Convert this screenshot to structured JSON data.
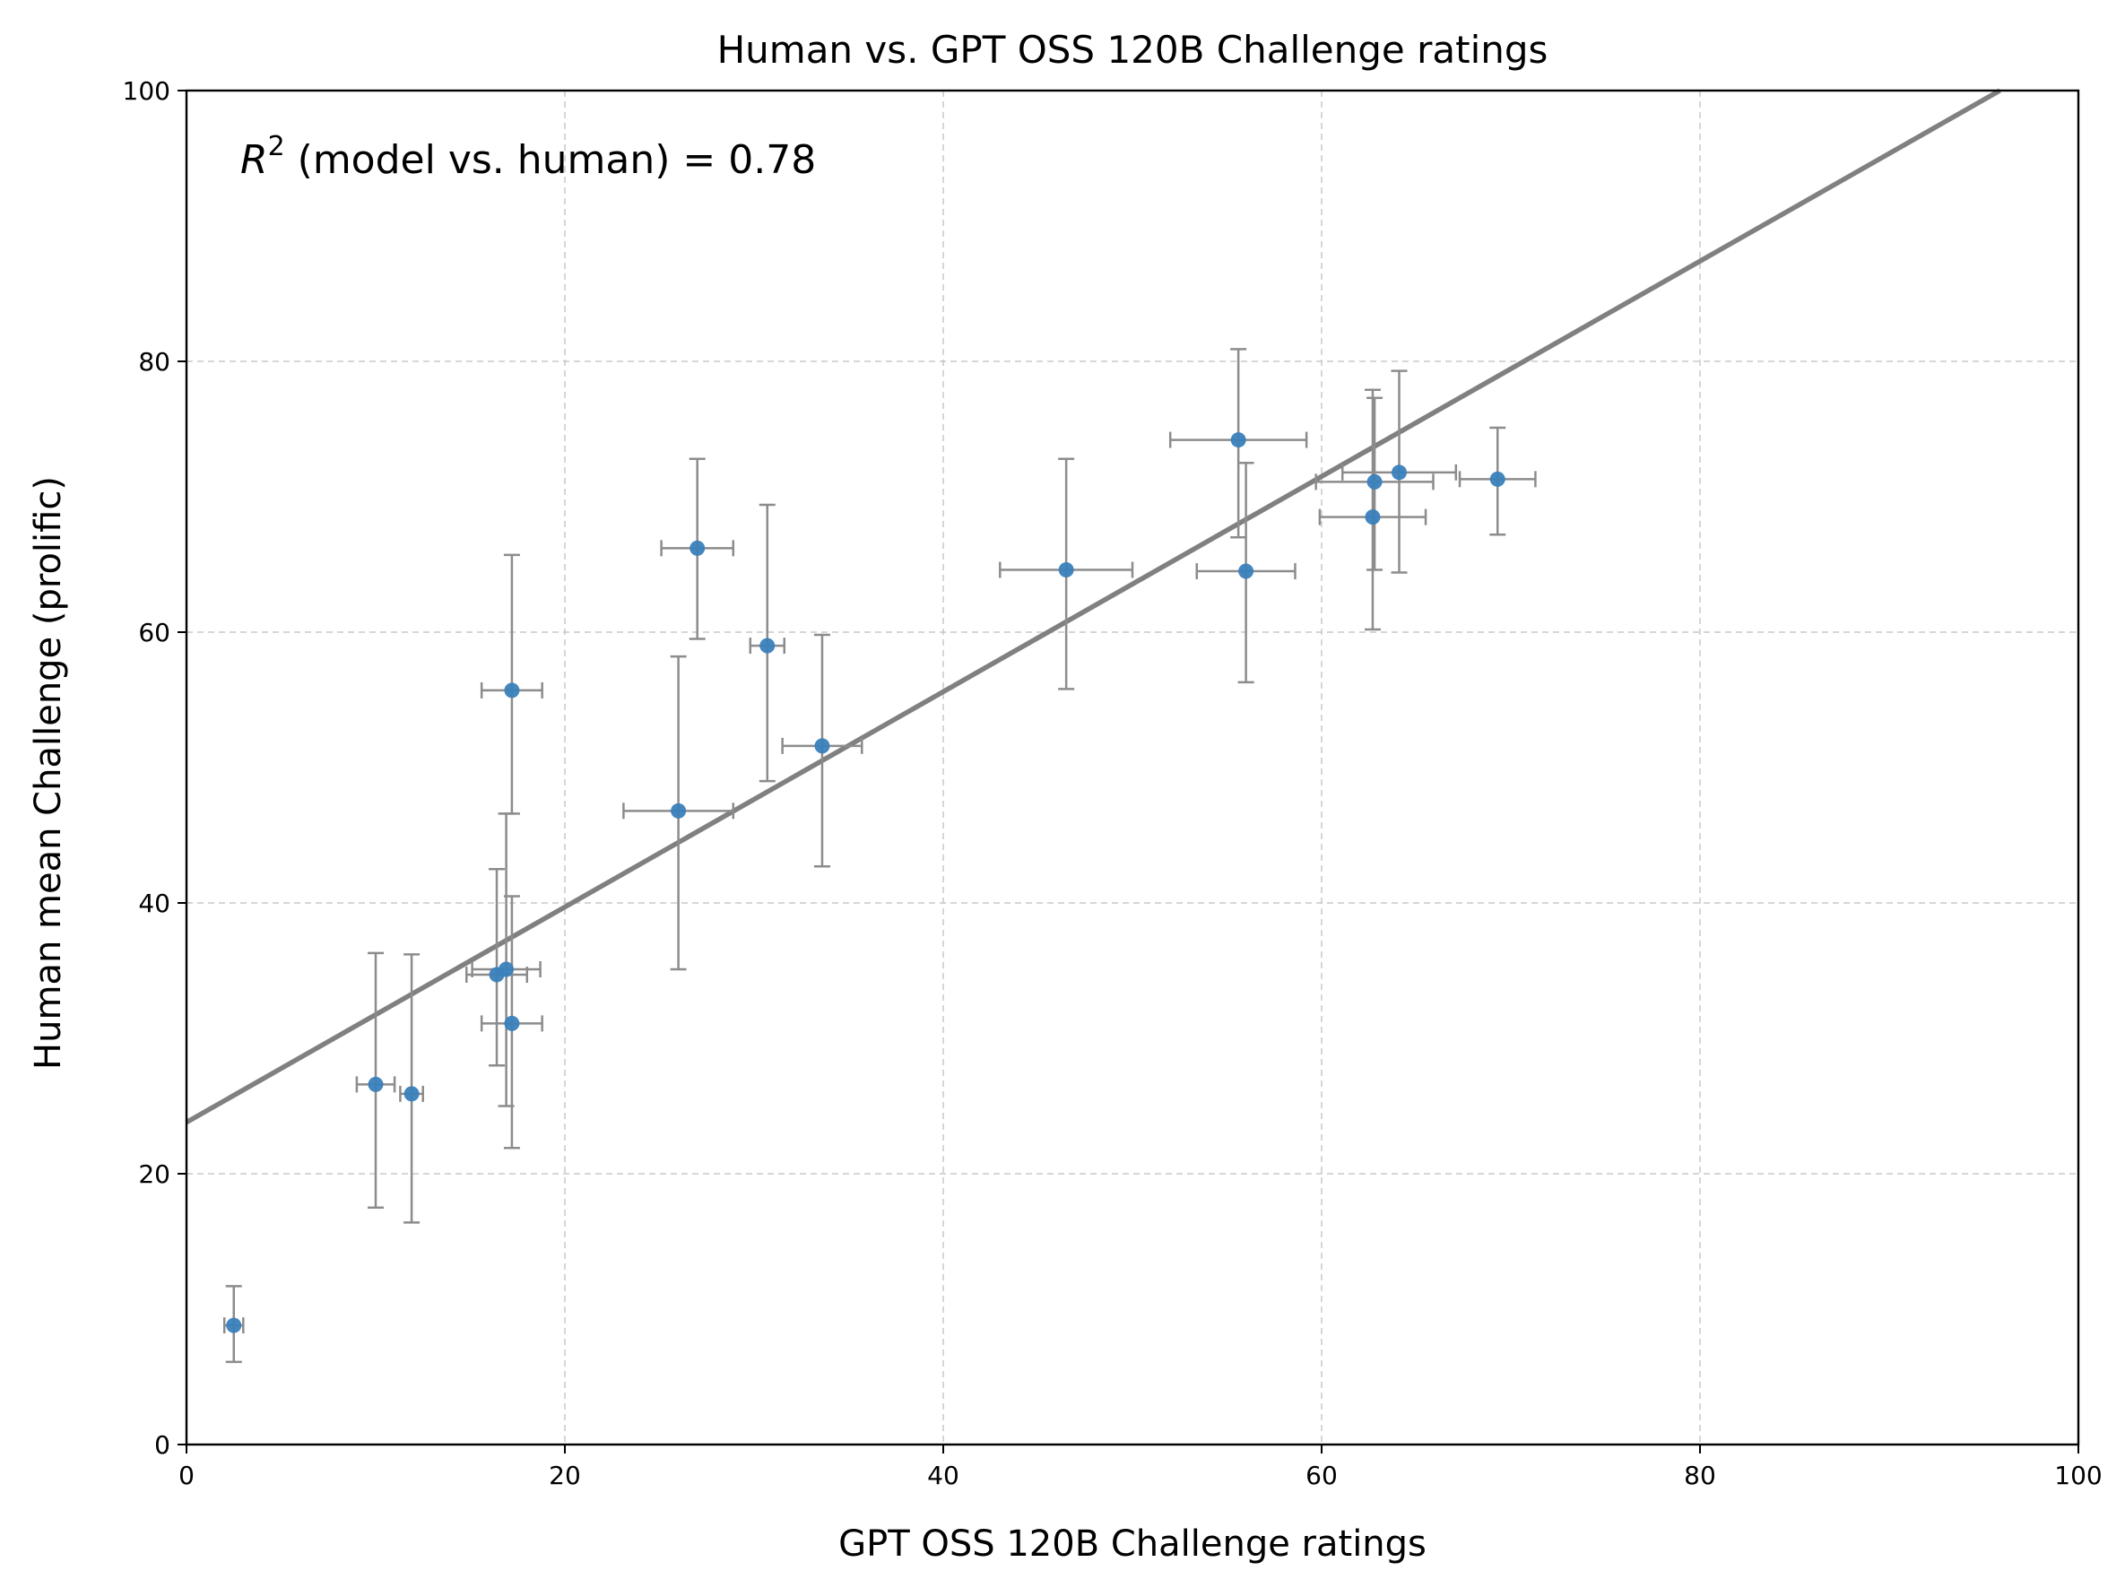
{
  "chart_data": {
    "type": "scatter",
    "title": "Human vs. GPT OSS 120B Challenge ratings",
    "xlabel": "GPT OSS 120B Challenge ratings",
    "ylabel": "Human mean Challenge (prolific)",
    "xlim": [
      0,
      100
    ],
    "ylim": [
      0,
      100
    ],
    "xticks": [
      "0",
      "20",
      "40",
      "60",
      "80",
      "100"
    ],
    "yticks": [
      "0",
      "20",
      "40",
      "60",
      "80",
      "100"
    ],
    "grid": true,
    "annotation": {
      "r_symbol": "R",
      "r_exponent": "2",
      "text": " (model vs. human) = 0.78"
    },
    "fit_line": {
      "intercept": 23.8,
      "slope": 0.795
    },
    "colors": {
      "point": "#3a80ba",
      "errorbar": "#8c8c8c",
      "fit_line": "#808080",
      "grid": "#c8c8c8"
    },
    "points": [
      {
        "x": 2.5,
        "y": 8.8,
        "xerr": [
          0.5,
          0.5
        ],
        "yerr": [
          6.1,
          11.7
        ]
      },
      {
        "x": 10.0,
        "y": 26.6,
        "xerr": [
          1.0,
          1.0
        ],
        "yerr": [
          17.5,
          36.3
        ]
      },
      {
        "x": 11.9,
        "y": 25.9,
        "xerr": [
          0.6,
          0.6
        ],
        "yerr": [
          16.4,
          36.2
        ]
      },
      {
        "x": 16.4,
        "y": 34.7,
        "xerr": [
          1.6,
          1.6
        ],
        "yerr": [
          28.0,
          42.5
        ]
      },
      {
        "x": 16.9,
        "y": 35.1,
        "xerr": [
          1.8,
          1.8
        ],
        "yerr": [
          25.0,
          46.6
        ]
      },
      {
        "x": 17.2,
        "y": 31.1,
        "xerr": [
          1.6,
          1.6
        ],
        "yerr": [
          21.9,
          40.5
        ]
      },
      {
        "x": 17.2,
        "y": 55.7,
        "xerr": [
          1.6,
          1.6
        ],
        "yerr": [
          46.6,
          65.7
        ]
      },
      {
        "x": 26.0,
        "y": 46.8,
        "xerr": [
          2.9,
          2.9
        ],
        "yerr": [
          35.1,
          58.2
        ]
      },
      {
        "x": 27.0,
        "y": 66.2,
        "xerr": [
          1.9,
          1.9
        ],
        "yerr": [
          59.5,
          72.8
        ]
      },
      {
        "x": 30.7,
        "y": 59.0,
        "xerr": [
          0.9,
          0.9
        ],
        "yerr": [
          49.0,
          69.4
        ]
      },
      {
        "x": 33.6,
        "y": 51.6,
        "xerr": [
          2.1,
          2.1
        ],
        "yerr": [
          42.7,
          59.8
        ]
      },
      {
        "x": 46.5,
        "y": 64.6,
        "xerr": [
          3.5,
          3.5
        ],
        "yerr": [
          55.8,
          72.8
        ]
      },
      {
        "x": 55.6,
        "y": 74.2,
        "xerr": [
          3.6,
          3.6
        ],
        "yerr": [
          67.0,
          80.9
        ]
      },
      {
        "x": 56.0,
        "y": 64.5,
        "xerr": [
          2.6,
          2.6
        ],
        "yerr": [
          56.3,
          72.5
        ]
      },
      {
        "x": 62.7,
        "y": 68.5,
        "xerr": [
          2.8,
          2.8
        ],
        "yerr": [
          60.2,
          77.9
        ]
      },
      {
        "x": 62.8,
        "y": 71.1,
        "xerr": [
          3.1,
          3.1
        ],
        "yerr": [
          64.6,
          77.3
        ]
      },
      {
        "x": 64.1,
        "y": 71.8,
        "xerr": [
          3.0,
          3.0
        ],
        "yerr": [
          64.4,
          79.3
        ]
      },
      {
        "x": 69.3,
        "y": 71.3,
        "xerr": [
          2.0,
          2.0
        ],
        "yerr": [
          67.2,
          75.1
        ]
      }
    ]
  }
}
